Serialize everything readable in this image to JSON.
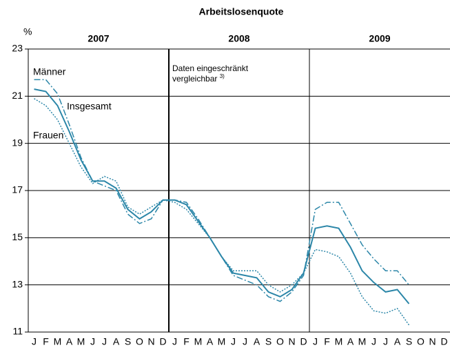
{
  "chart_data": {
    "type": "line",
    "title": "Arbeitslosenquote",
    "y_label": "%",
    "years": [
      "2007",
      "2008",
      "2009"
    ],
    "categories": [
      "J",
      "F",
      "M",
      "A",
      "M",
      "J",
      "J",
      "A",
      "S",
      "O",
      "N",
      "D",
      "J",
      "F",
      "M",
      "A",
      "M",
      "J",
      "J",
      "A",
      "S",
      "O",
      "N",
      "D",
      "J",
      "F",
      "M",
      "A",
      "M",
      "J",
      "J",
      "A",
      "S",
      "O",
      "N",
      "D"
    ],
    "ylim": [
      11,
      23
    ],
    "yticks": [
      11,
      13,
      15,
      17,
      19,
      21,
      23
    ],
    "grid": true,
    "annotation": [
      "Daten eingeschränkt",
      "vergleichbar"
    ],
    "annotation_note": "3)",
    "series": [
      {
        "name": "Männer",
        "color": "#2b86a8",
        "dash": "dashdot",
        "values": [
          21.7,
          21.7,
          21.1,
          19.8,
          18.4,
          17.4,
          17.2,
          17.0,
          16.0,
          15.6,
          15.8,
          16.6,
          16.6,
          16.5,
          15.8,
          15.0,
          14.2,
          13.4,
          13.2,
          13.0,
          12.5,
          12.3,
          12.7,
          13.4,
          16.2,
          16.5,
          16.5,
          15.6,
          14.7,
          14.1,
          13.6,
          13.6,
          13.0,
          null,
          null,
          null
        ]
      },
      {
        "name": "Insgesamt",
        "color": "#2b86a8",
        "dash": "solid",
        "values": [
          21.3,
          21.2,
          20.6,
          19.5,
          18.3,
          17.4,
          17.4,
          17.1,
          16.2,
          15.8,
          16.1,
          16.6,
          16.6,
          16.4,
          15.7,
          15.0,
          14.2,
          13.5,
          13.4,
          13.3,
          12.7,
          12.5,
          12.8,
          13.5,
          15.4,
          15.5,
          15.4,
          14.6,
          13.6,
          13.1,
          12.7,
          12.8,
          12.2,
          null,
          null,
          null
        ]
      },
      {
        "name": "Frauen",
        "color": "#2b86a8",
        "dash": "dotted",
        "values": [
          20.9,
          20.6,
          20.0,
          19.0,
          18.0,
          17.3,
          17.6,
          17.4,
          16.3,
          16.0,
          16.3,
          16.6,
          16.5,
          16.2,
          15.6,
          15.0,
          14.2,
          13.6,
          13.6,
          13.6,
          13.0,
          12.7,
          13.0,
          13.5,
          14.5,
          14.4,
          14.2,
          13.5,
          12.5,
          11.9,
          11.8,
          12.0,
          11.3,
          null,
          null,
          null
        ]
      }
    ]
  }
}
